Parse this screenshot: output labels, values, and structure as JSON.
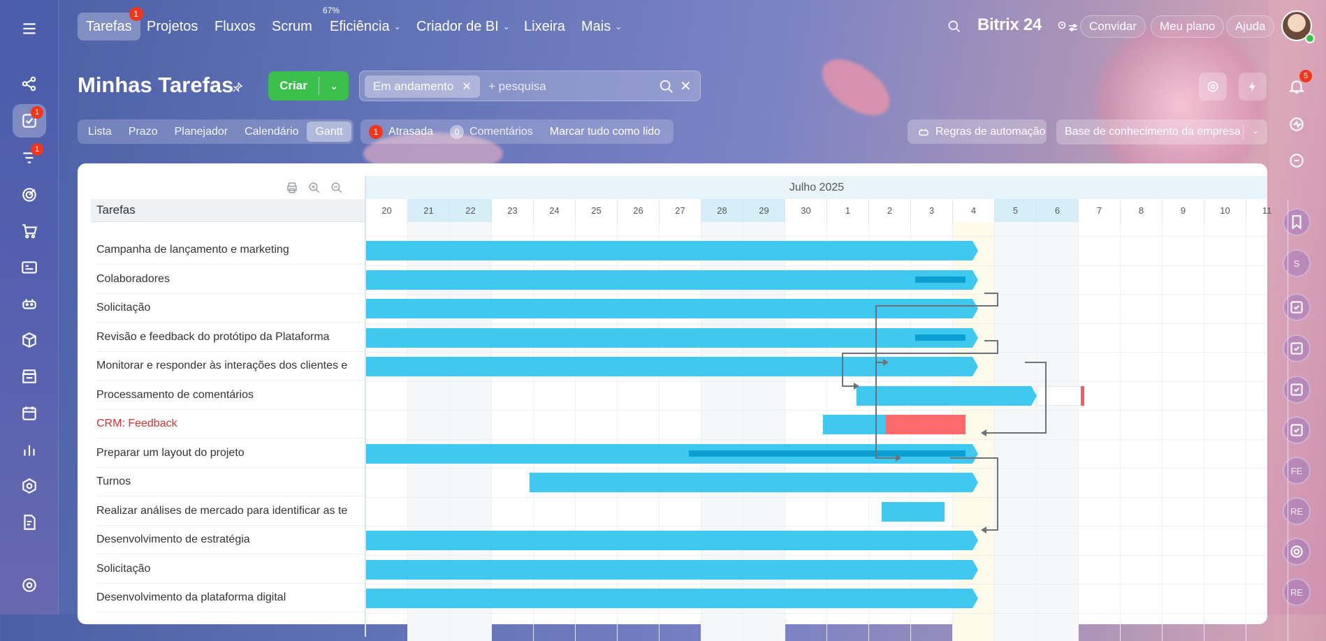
{
  "topnav": {
    "items": [
      {
        "label": "Tarefas",
        "badge": "1",
        "active": true
      },
      {
        "label": "Projetos"
      },
      {
        "label": "Fluxos"
      },
      {
        "label": "Scrum"
      },
      {
        "label": "Eficiência",
        "top": "67%",
        "dropdown": true
      },
      {
        "label": "Criador de BI",
        "dropdown": true
      },
      {
        "label": "Lixeira"
      },
      {
        "label": "Mais",
        "dropdown": true
      }
    ],
    "brand": "Bitrix 24",
    "invite": "Convidar",
    "plan": "Meu plano",
    "help": "Ajuda"
  },
  "left_sidebar": {
    "tasks_badge": "1",
    "filters_badge": "1"
  },
  "right_sidebar": {
    "notifications_badge": "5",
    "avatars": [
      "S",
      "FE",
      "RE",
      "RE"
    ]
  },
  "header": {
    "title": "Minhas Tarefas",
    "create_label": "Criar",
    "filter_chip": "Em andamento",
    "search_placeholder": "+ pesquisa"
  },
  "views": {
    "tabs": [
      "Lista",
      "Prazo",
      "Planejador",
      "Calendário",
      "Gantt"
    ],
    "active": "Gantt"
  },
  "counters": {
    "overdue_count": "1",
    "overdue_label": "Atrasada",
    "comments_count": "0",
    "comments_label": "Comentários",
    "mark_all_read": "Marcar tudo como lido"
  },
  "automation_label": "Regras de automação",
  "knowledge_base": "Base de conhecimento da empresa",
  "gantt": {
    "tree_header": "Tarefas",
    "month": "Julho 2025",
    "days": [
      "20",
      "21",
      "22",
      "23",
      "24",
      "25",
      "26",
      "27",
      "28",
      "29",
      "30",
      "1",
      "2",
      "3",
      "4",
      "5",
      "6",
      "7",
      "8",
      "9",
      "10",
      "11"
    ],
    "weekend_days": [
      "21",
      "22",
      "28",
      "29",
      "5",
      "6"
    ],
    "today": "4",
    "tasks": [
      {
        "name": "Campanha de lançamento e marketing"
      },
      {
        "name": "Colaboradores"
      },
      {
        "name": "Solicitação"
      },
      {
        "name": "Revisão e feedback do protótipo da Plataforma"
      },
      {
        "name": "Monitorar e responder às interações dos clientes e"
      },
      {
        "name": "Processamento de comentários"
      },
      {
        "name": "CRM: Feedback",
        "overdue": true
      },
      {
        "name": "Preparar um layout do projeto"
      },
      {
        "name": "Turnos"
      },
      {
        "name": "Realizar análises de mercado para identificar as te"
      },
      {
        "name": "Desenvolvimento de estratégia"
      },
      {
        "name": "Solicitação"
      },
      {
        "name": "Desenvolvimento da plataforma digital"
      }
    ]
  },
  "colors": {
    "bar": "#3fc8f0",
    "progress": "#0a9fd0",
    "overdue": "#ff6a6a",
    "create": "#3bc04d",
    "badge": "#f0371b"
  }
}
